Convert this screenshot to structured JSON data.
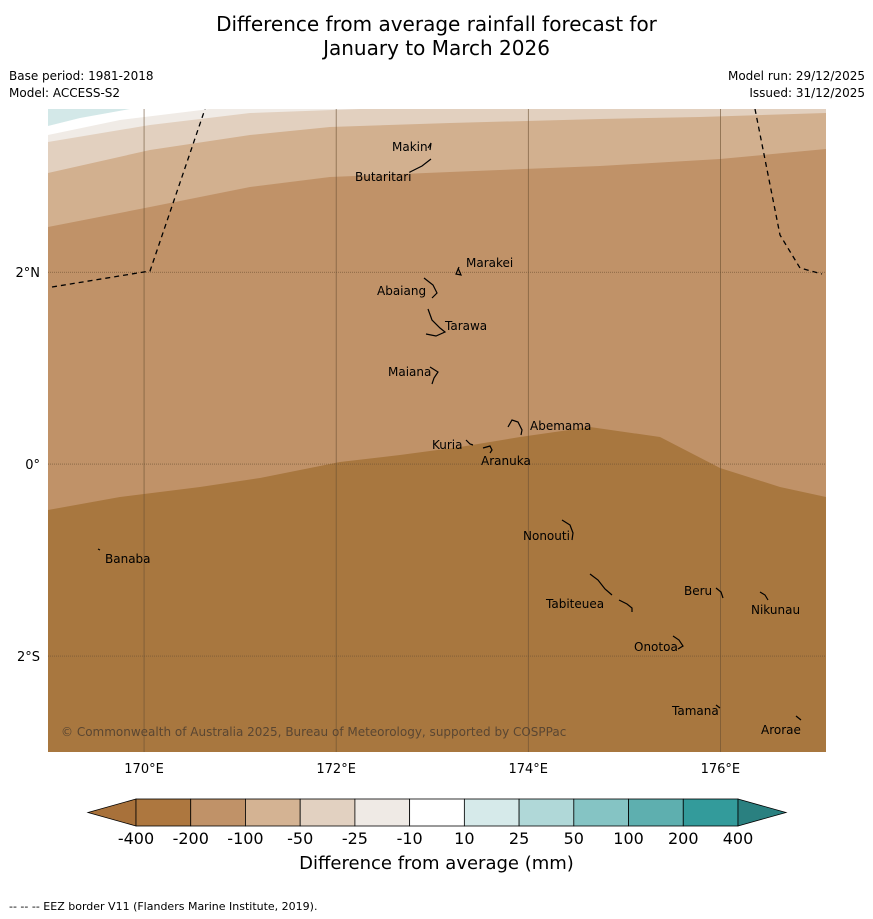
{
  "title": {
    "line1": "Difference from average rainfall forecast for",
    "line2": "January to March 2026"
  },
  "meta": {
    "base_period": "Base period: 1981-2018",
    "model": "Model: ACCESS-S2",
    "model_run": "Model run: 29/12/2025",
    "issued": "Issued: 31/12/2025"
  },
  "map": {
    "lon_range": [
      169,
      177.1
    ],
    "lat_range": [
      -3.0,
      3.7
    ],
    "x_ticks": [
      {
        "lon": 170,
        "label": "170°E"
      },
      {
        "lon": 172,
        "label": "172°E"
      },
      {
        "lon": 174,
        "label": "174°E"
      },
      {
        "lon": 176,
        "label": "176°E"
      }
    ],
    "y_ticks": [
      {
        "lat": 2,
        "label": "2°N"
      },
      {
        "lat": 0,
        "label": "0°"
      },
      {
        "lat": -2,
        "label": "2°S"
      }
    ],
    "copyright": "© Commonwealth of Australia 2025, Bureau of Meteorology, supported by COSPPac",
    "islands": [
      {
        "name": "Makin",
        "lon": 172.99,
        "lat": 3.35
      },
      {
        "name": "Butaritari",
        "lon": 172.85,
        "lat": 3.05
      },
      {
        "name": "Marakei",
        "lon": 173.28,
        "lat": 2.0
      },
      {
        "name": "Abaiang",
        "lon": 172.95,
        "lat": 1.84
      },
      {
        "name": "Tarawa",
        "lon": 173.0,
        "lat": 1.4
      },
      {
        "name": "Maiana",
        "lon": 173.0,
        "lat": 0.95
      },
      {
        "name": "Abemama",
        "lon": 173.87,
        "lat": 0.38
      },
      {
        "name": "Kuria",
        "lon": 173.42,
        "lat": 0.22
      },
      {
        "name": "Aranuka",
        "lon": 173.6,
        "lat": 0.17
      },
      {
        "name": "Banaba",
        "lon": 169.54,
        "lat": -0.86
      },
      {
        "name": "Nonouti",
        "lon": 174.4,
        "lat": -0.65
      },
      {
        "name": "Tabiteuea",
        "lon": 174.8,
        "lat": -1.35
      },
      {
        "name": "Beru",
        "lon": 175.98,
        "lat": -1.33
      },
      {
        "name": "Nikunau",
        "lon": 176.45,
        "lat": -1.36
      },
      {
        "name": "Onotoa",
        "lon": 175.58,
        "lat": -1.85
      },
      {
        "name": "Tamana",
        "lon": 175.98,
        "lat": -2.5
      },
      {
        "name": "Arorae",
        "lon": 176.82,
        "lat": -2.65
      }
    ]
  },
  "colorbar": {
    "title": "Difference from average (mm)",
    "labels": [
      "-400",
      "-200",
      "-100",
      "-50",
      "-25",
      "-10",
      "10",
      "25",
      "50",
      "100",
      "200",
      "400"
    ],
    "colors": [
      "#a8713a",
      "#ad773f",
      "#c09268",
      "#d4b393",
      "#e2d1c1",
      "#efeae5",
      "#ffffff",
      "#d6eaea",
      "#b0d8d8",
      "#85c4c4",
      "#5eafaf",
      "#339b9b",
      "#2a8080"
    ]
  },
  "footer": "--  --  -- EEZ border V11 (Flanders Marine Institute, 2019)."
}
